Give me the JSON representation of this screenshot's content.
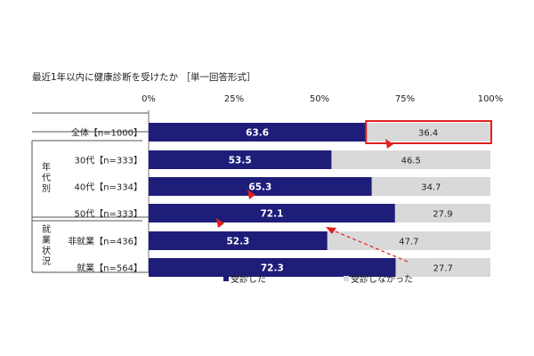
{
  "chart_data": {
    "type": "bar",
    "stacked": true,
    "orientation": "horizontal",
    "title": "最近1年以内に健康診断を受けたか ［単一回答形式］",
    "x_ticks": [
      "0%",
      "25%",
      "50%",
      "75%",
      "100%"
    ],
    "xlim": [
      0,
      100
    ],
    "groups": [
      {
        "label": "",
        "rows": [
          0
        ]
      },
      {
        "label": "年代別",
        "rows": [
          1,
          2,
          3
        ]
      },
      {
        "label": "就業状況",
        "rows": [
          4,
          5
        ]
      }
    ],
    "categories": [
      "全体【n=1000】",
      "30代【n=333】",
      "40代【n=334】",
      "50代【n=333】",
      "非就業【n=436】",
      "就業【n=564】"
    ],
    "series": [
      {
        "name": "受診した",
        "color": "#1f1d7a",
        "values": [
          63.6,
          53.5,
          65.3,
          72.1,
          52.3,
          72.3
        ]
      },
      {
        "name": "受診しなかった",
        "color": "#d9d9d9",
        "values": [
          36.4,
          46.5,
          34.7,
          27.9,
          47.7,
          27.7
        ]
      }
    ],
    "value_labels": [
      [
        "63.6",
        "53.5",
        "65.3",
        "72.1",
        "52.3",
        "72.3"
      ],
      [
        "36.4",
        "46.5",
        "34.7",
        "27.9",
        "47.7",
        "27.7"
      ]
    ],
    "legend_position": "bottom",
    "highlight_color": "#e02020"
  }
}
